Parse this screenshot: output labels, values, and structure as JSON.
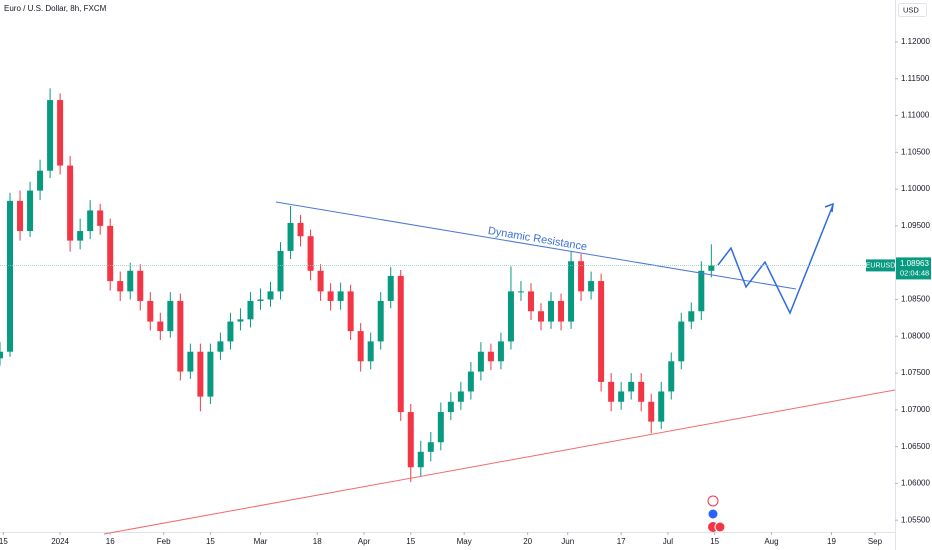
{
  "chart_data": {
    "type": "candlestick",
    "title": "Euro / U.S. Dollar, 8h, FXCM",
    "currency": "USD",
    "symbol": "EURUSD",
    "last_price": 1.08963,
    "countdown": "02:04:48",
    "annotation": "Dynamic Resistance",
    "up_color": "#089981",
    "down_color": "#f23645",
    "x": [
      "2023-12-14",
      "2023-12-17",
      "2023-12-20",
      "2023-12-23",
      "2023-12-26",
      "2023-12-29",
      "2024-01-01",
      "2024-01-04",
      "2024-01-07",
      "2024-01-10",
      "2024-01-13",
      "2024-01-16",
      "2024-01-19",
      "2024-01-22",
      "2024-01-25",
      "2024-01-28",
      "2024-01-31",
      "2024-02-03",
      "2024-02-06",
      "2024-02-09",
      "2024-02-12",
      "2024-02-15",
      "2024-02-18",
      "2024-02-21",
      "2024-02-24",
      "2024-02-27",
      "2024-03-01",
      "2024-03-04",
      "2024-03-07",
      "2024-03-10",
      "2024-03-13",
      "2024-03-16",
      "2024-03-19",
      "2024-03-22",
      "2024-03-25",
      "2024-03-28",
      "2024-03-31",
      "2024-04-03",
      "2024-04-06",
      "2024-04-09",
      "2024-04-12",
      "2024-04-15",
      "2024-04-18",
      "2024-04-21",
      "2024-04-24",
      "2024-04-27",
      "2024-04-30",
      "2024-05-03",
      "2024-05-06",
      "2024-05-09",
      "2024-05-12",
      "2024-05-15",
      "2024-05-18",
      "2024-05-21",
      "2024-05-24",
      "2024-05-27",
      "2024-05-30",
      "2024-06-02",
      "2024-06-05",
      "2024-06-08",
      "2024-06-11",
      "2024-06-14",
      "2024-06-17",
      "2024-06-20",
      "2024-06-23",
      "2024-06-26",
      "2024-06-29",
      "2024-07-02",
      "2024-07-05",
      "2024-07-08",
      "2024-07-11",
      "2024-07-14"
    ],
    "open": [
      1.077,
      1.0779,
      1.0984,
      1.0943,
      1.0998,
      1.1025,
      1.1121,
      1.1032,
      1.093,
      1.0943,
      1.0971,
      1.095,
      1.0875,
      1.0861,
      1.0889,
      1.0848,
      1.082,
      1.0807,
      1.0848,
      1.0752,
      1.0779,
      1.0718,
      1.0779,
      1.0793,
      1.082,
      1.0823,
      1.0848,
      1.085,
      1.0861,
      1.0916,
      1.0954,
      1.0936,
      1.0889,
      1.0861,
      1.0848,
      1.0861,
      1.0807,
      1.0766,
      1.0793,
      1.0848,
      1.0882,
      1.0697,
      1.0622,
      1.0643,
      1.0656,
      1.0697,
      1.0711,
      1.0725,
      1.0752,
      1.0779,
      1.0766,
      1.0793,
      1.0861,
      1.0861,
      1.0834,
      1.082,
      1.0848,
      1.082,
      1.0902,
      1.0861,
      1.0875,
      1.0738,
      1.0711,
      1.0725,
      1.0738,
      1.0711,
      1.0684,
      1.0725,
      1.0766,
      1.082,
      1.0834,
      1.0889
    ],
    "high": [
      1.0792,
      1.0995,
      1.0998,
      1.101,
      1.104,
      1.1137,
      1.113,
      1.1045,
      1.096,
      1.0985,
      1.098,
      1.096,
      1.0888,
      1.09,
      1.0898,
      1.086,
      1.0832,
      1.086,
      1.0858,
      1.079,
      1.079,
      1.079,
      1.0805,
      1.0832,
      1.0838,
      1.086,
      1.0865,
      1.0874,
      1.0928,
      1.0977,
      1.0965,
      1.0945,
      1.0898,
      1.0872,
      1.0873,
      1.087,
      1.0818,
      1.0805,
      1.086,
      1.0894,
      1.089,
      1.0708,
      1.0658,
      1.067,
      1.071,
      1.0724,
      1.0738,
      1.0765,
      1.0792,
      1.079,
      1.0805,
      1.0895,
      1.0875,
      1.0872,
      1.0845,
      1.086,
      1.0858,
      1.0916,
      1.0912,
      1.0888,
      1.0885,
      1.075,
      1.0738,
      1.075,
      1.075,
      1.0722,
      1.0738,
      1.0778,
      1.0832,
      1.0846,
      1.0902,
      1.0925
    ],
    "low": [
      1.076,
      1.0772,
      1.093,
      1.0935,
      1.0985,
      1.1015,
      1.102,
      1.0915,
      1.0918,
      1.0932,
      1.0938,
      1.0862,
      1.0848,
      1.085,
      1.0835,
      1.0808,
      1.0795,
      1.0798,
      1.074,
      1.0742,
      1.0698,
      1.0708,
      1.0768,
      1.0782,
      1.0808,
      1.0812,
      1.0836,
      1.084,
      1.085,
      1.0905,
      1.0922,
      1.0876,
      1.0848,
      1.0835,
      1.0836,
      1.0795,
      1.0752,
      1.0755,
      1.0782,
      1.0838,
      1.0685,
      1.0602,
      1.061,
      1.063,
      1.0645,
      1.0686,
      1.07,
      1.0714,
      1.074,
      1.0754,
      1.0755,
      1.0782,
      1.0848,
      1.0822,
      1.0808,
      1.081,
      1.0808,
      1.081,
      1.0848,
      1.085,
      1.0725,
      1.0698,
      1.07,
      1.0714,
      1.0698,
      1.0668,
      1.0674,
      1.0714,
      1.0755,
      1.081,
      1.0822,
      1.088
    ],
    "close": [
      1.0779,
      1.0984,
      1.0943,
      1.0998,
      1.1025,
      1.1121,
      1.1032,
      1.093,
      1.0943,
      1.0971,
      1.095,
      1.0875,
      1.0861,
      1.0889,
      1.0848,
      1.082,
      1.0807,
      1.0848,
      1.0752,
      1.0779,
      1.0718,
      1.0779,
      1.0793,
      1.082,
      1.0823,
      1.0848,
      1.085,
      1.0861,
      1.0916,
      1.0954,
      1.0936,
      1.0889,
      1.0861,
      1.0848,
      1.0861,
      1.0807,
      1.0766,
      1.0793,
      1.0848,
      1.0882,
      1.0697,
      1.0622,
      1.0643,
      1.0656,
      1.0697,
      1.0711,
      1.0725,
      1.0752,
      1.0779,
      1.0766,
      1.0793,
      1.0861,
      1.0861,
      1.0834,
      1.082,
      1.0848,
      1.082,
      1.0902,
      1.0861,
      1.0875,
      1.0738,
      1.0711,
      1.0725,
      1.0738,
      1.0711,
      1.0684,
      1.0725,
      1.0766,
      1.082,
      1.0834,
      1.0889,
      1.0896
    ],
    "xlim": [
      "2023-12-14",
      "2024-09-07"
    ],
    "xticks": [
      {
        "value": "2023-12-15",
        "label": "15"
      },
      {
        "value": "2024-01-01",
        "label": "2024"
      },
      {
        "value": "2024-01-16",
        "label": "16"
      },
      {
        "value": "2024-02-01",
        "label": "Feb"
      },
      {
        "value": "2024-02-15",
        "label": "15"
      },
      {
        "value": "2024-03-01",
        "label": "Mar"
      },
      {
        "value": "2024-03-18",
        "label": "18"
      },
      {
        "value": "2024-04-01",
        "label": "Apr"
      },
      {
        "value": "2024-04-15",
        "label": "15"
      },
      {
        "value": "2024-05-01",
        "label": "May"
      },
      {
        "value": "2024-05-20",
        "label": "20"
      },
      {
        "value": "2024-06-01",
        "label": "Jun"
      },
      {
        "value": "2024-06-17",
        "label": "17"
      },
      {
        "value": "2024-07-01",
        "label": "Jul"
      },
      {
        "value": "2024-07-15",
        "label": "15"
      },
      {
        "value": "2024-08-01",
        "label": "Aug"
      },
      {
        "value": "2024-08-19",
        "label": "19"
      },
      {
        "value": "2024-09-01",
        "label": "Sep"
      }
    ],
    "ylim": [
      1.0534,
      1.1257
    ],
    "yticks": [
      {
        "value": 1.055,
        "label": "1.05500"
      },
      {
        "value": 1.06,
        "label": "1.06000"
      },
      {
        "value": 1.065,
        "label": "1.06500"
      },
      {
        "value": 1.07,
        "label": "1.07000"
      },
      {
        "value": 1.075,
        "label": "1.07500"
      },
      {
        "value": 1.08,
        "label": "1.08000"
      },
      {
        "value": 1.085,
        "label": "1.08500"
      },
      {
        "value": 1.095,
        "label": "1.09500"
      },
      {
        "value": 1.1,
        "label": "1.10000"
      },
      {
        "value": 1.105,
        "label": "1.10500"
      },
      {
        "value": 1.11,
        "label": "1.11000"
      },
      {
        "value": 1.115,
        "label": "1.11500"
      },
      {
        "value": 1.12,
        "label": "1.12000"
      }
    ]
  }
}
